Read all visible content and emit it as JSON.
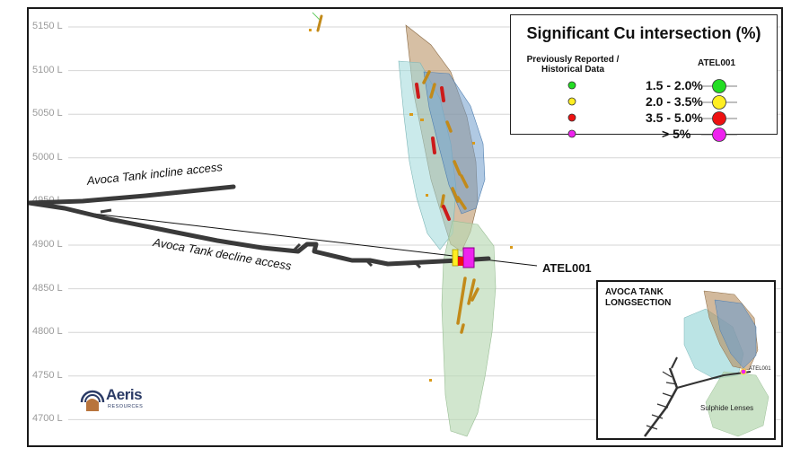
{
  "levels": [
    "5150 L",
    "5100 L",
    "5050 L",
    "5000 L",
    "4950 L",
    "4900 L",
    "4850 L",
    "4800 L",
    "4750 L",
    "4700 L"
  ],
  "labels": {
    "incline": "Avoca Tank incline access",
    "decline": "Avoca Tank decline access",
    "drillhole": "ATEL001"
  },
  "legend": {
    "title": "Significant Cu intersection (%)",
    "historical_header": "Previously Reported / Historical Data",
    "atel_header": "ATEL001",
    "items": [
      {
        "range": "1.5 - 2.0%",
        "color": "#22dd22"
      },
      {
        "range": "2.0 - 3.5%",
        "color": "#ffee22"
      },
      {
        "range": "3.5 - 5.0%",
        "color": "#ee1111"
      },
      {
        "range": "> 5%",
        "color": "#ee22ee"
      }
    ]
  },
  "inset": {
    "title_line1": "AVOCA TANK",
    "title_line2": "LONGSECTION",
    "drillhole": "ATEL001",
    "lens_label": "Sulphide Lenses"
  },
  "logo": {
    "name": "Aeris",
    "sub": "RESOURCES"
  }
}
